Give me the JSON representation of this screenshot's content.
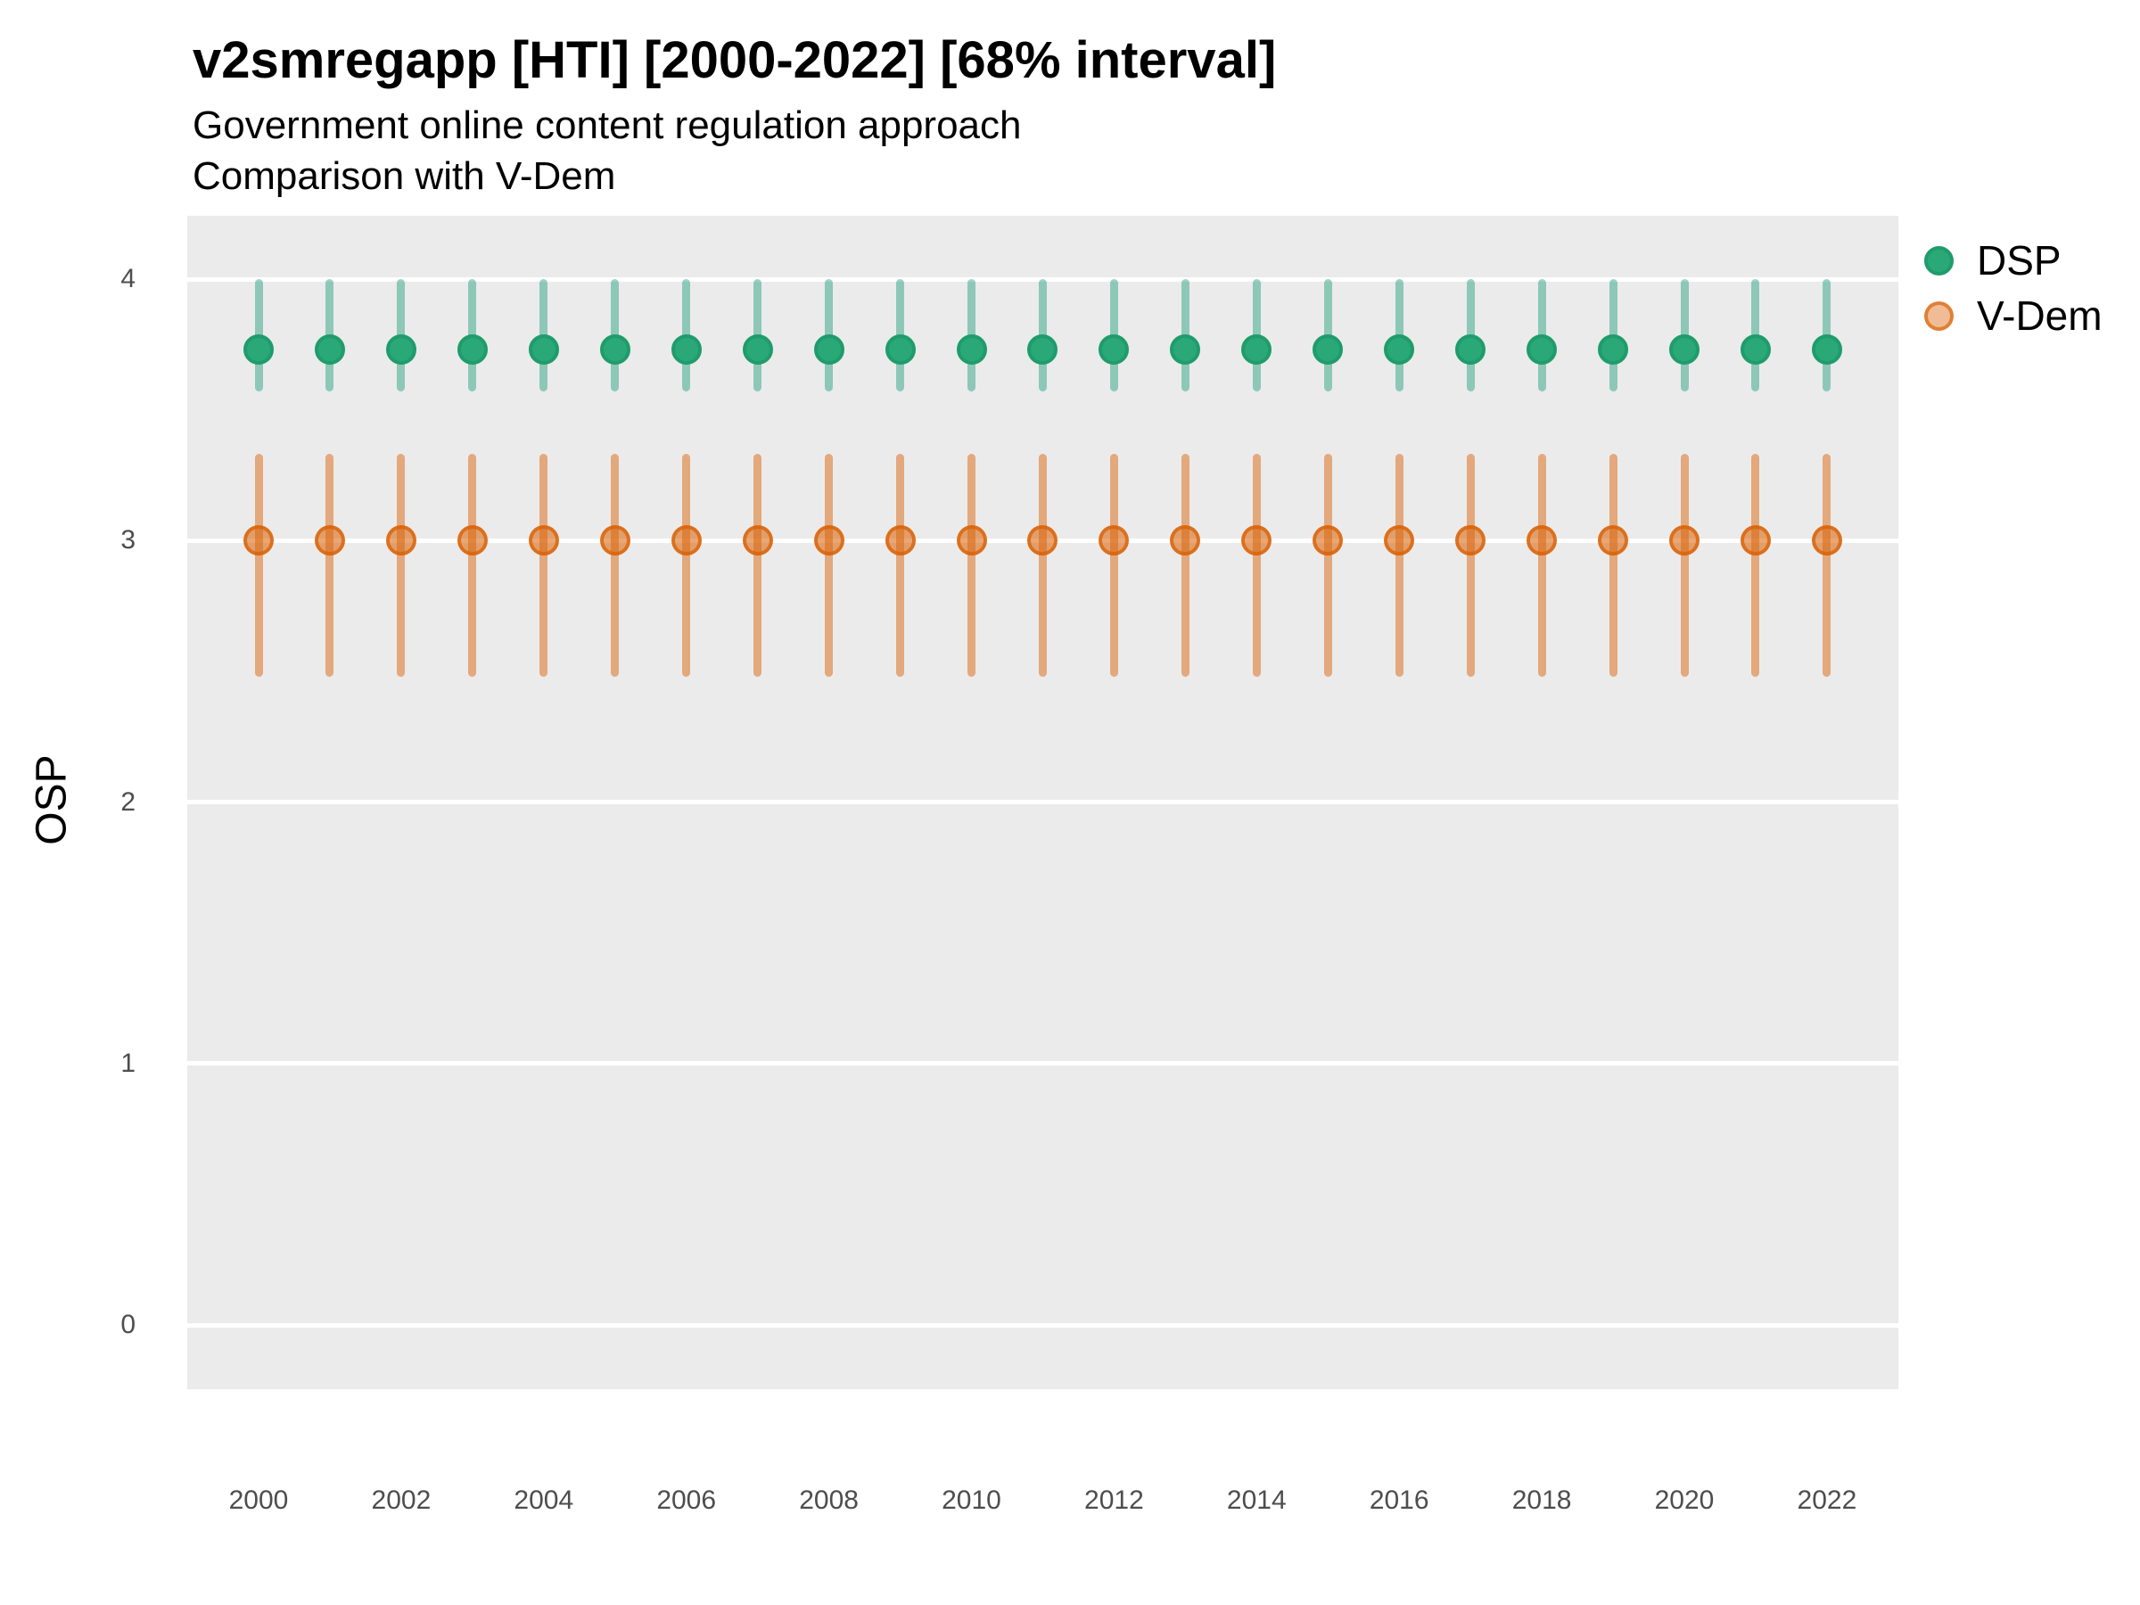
{
  "title": "v2smregapp [HTI] [2000-2022] [68% interval]",
  "subtitle_line1": "Government online content regulation approach",
  "subtitle_line2": "Comparison with V-Dem",
  "y_axis": {
    "title": "OSP",
    "ticks": [
      "4",
      "3",
      "2",
      "1",
      "0"
    ]
  },
  "x_axis": {
    "tick_labels": [
      "2000",
      "2002",
      "2004",
      "2006",
      "2008",
      "2010",
      "2012",
      "2014",
      "2016",
      "2018",
      "2020",
      "2022"
    ]
  },
  "legend": {
    "items": [
      {
        "label": "DSP",
        "series": "DSP"
      },
      {
        "label": "V-Dem",
        "series": "V-Dem"
      }
    ]
  },
  "colors": {
    "panel_background": "#EBEBEB",
    "gridline": "#FFFFFF",
    "dsp_point_fill": "#2BA877",
    "dsp_point_stroke": "#1F9C6C",
    "dsp_bar": "rgba(27,158,119,0.45)",
    "vdem_point_fill": "rgba(217,95,2,0.55)",
    "vdem_point_stroke": "rgba(217,95,2,0.75)",
    "vdem_bar": "rgba(217,95,2,0.48)"
  },
  "chart_data": {
    "type": "pointrange",
    "title": "v2smregapp [HTI] [2000-2022] [68% interval]",
    "subtitle": [
      "Government online content regulation approach",
      "Comparison with V-Dem"
    ],
    "interval": "68%",
    "xlabel": "",
    "ylabel": "OSP",
    "ylim": [
      -0.25,
      4.25
    ],
    "yticks": [
      0,
      1,
      2,
      3,
      4
    ],
    "grid": "major-horizontal-white-on-gray",
    "legend_position": "right",
    "x": [
      2000,
      2001,
      2002,
      2003,
      2004,
      2005,
      2006,
      2007,
      2008,
      2009,
      2010,
      2011,
      2012,
      2013,
      2014,
      2015,
      2016,
      2017,
      2018,
      2019,
      2020,
      2021,
      2022
    ],
    "series": [
      {
        "name": "DSP",
        "values": [
          3.73,
          3.73,
          3.73,
          3.73,
          3.73,
          3.73,
          3.73,
          3.73,
          3.73,
          3.73,
          3.73,
          3.73,
          3.73,
          3.73,
          3.73,
          3.73,
          3.73,
          3.73,
          3.73,
          3.73,
          3.73,
          3.73,
          3.73
        ],
        "lower": [
          3.57,
          3.57,
          3.57,
          3.57,
          3.57,
          3.57,
          3.57,
          3.57,
          3.57,
          3.57,
          3.57,
          3.57,
          3.57,
          3.57,
          3.57,
          3.57,
          3.57,
          3.57,
          3.57,
          3.57,
          3.57,
          3.57,
          3.57
        ],
        "upper": [
          4.0,
          4.0,
          4.0,
          4.0,
          4.0,
          4.0,
          4.0,
          4.0,
          4.0,
          4.0,
          4.0,
          4.0,
          4.0,
          4.0,
          4.0,
          4.0,
          4.0,
          4.0,
          4.0,
          4.0,
          4.0,
          4.0,
          4.0
        ]
      },
      {
        "name": "V-Dem",
        "values": [
          3.0,
          3.0,
          3.0,
          3.0,
          3.0,
          3.0,
          3.0,
          3.0,
          3.0,
          3.0,
          3.0,
          3.0,
          3.0,
          3.0,
          3.0,
          3.0,
          3.0,
          3.0,
          3.0,
          3.0,
          3.0,
          3.0,
          3.0
        ],
        "lower": [
          2.48,
          2.48,
          2.48,
          2.48,
          2.48,
          2.48,
          2.48,
          2.48,
          2.48,
          2.48,
          2.48,
          2.48,
          2.48,
          2.48,
          2.48,
          2.48,
          2.48,
          2.48,
          2.48,
          2.48,
          2.48,
          2.48,
          2.48
        ],
        "upper": [
          3.33,
          3.33,
          3.33,
          3.33,
          3.33,
          3.33,
          3.33,
          3.33,
          3.33,
          3.33,
          3.33,
          3.33,
          3.33,
          3.33,
          3.33,
          3.33,
          3.33,
          3.33,
          3.33,
          3.33,
          3.33,
          3.33,
          3.33
        ]
      }
    ]
  }
}
